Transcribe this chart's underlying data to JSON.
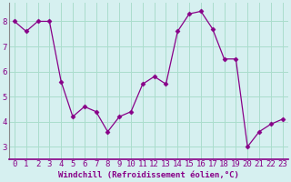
{
  "x": [
    0,
    1,
    2,
    3,
    4,
    5,
    6,
    7,
    8,
    9,
    10,
    11,
    12,
    13,
    14,
    15,
    16,
    17,
    18,
    19,
    20,
    21,
    22,
    23
  ],
  "y": [
    8.0,
    7.6,
    8.0,
    8.0,
    5.6,
    4.2,
    4.6,
    4.4,
    3.6,
    4.2,
    4.4,
    5.5,
    5.8,
    5.5,
    7.6,
    8.3,
    8.4,
    7.7,
    6.5,
    6.5,
    3.0,
    3.6,
    3.9,
    4.1
  ],
  "line_color": "#880088",
  "marker": "D",
  "marker_size": 2.5,
  "bg_color": "#d6f0f0",
  "grid_color": "#aaddcc",
  "xlabel": "Windchill (Refroidissement éolien,°C)",
  "xlabel_color": "#880088",
  "xlabel_fontsize": 6.5,
  "ylabel_ticks": [
    3,
    4,
    5,
    6,
    7,
    8
  ],
  "ylim": [
    2.5,
    8.75
  ],
  "xlim": [
    -0.5,
    23.5
  ],
  "tick_fontsize": 6.5,
  "spine_color": "#888888",
  "axis_line_color": "#880088"
}
